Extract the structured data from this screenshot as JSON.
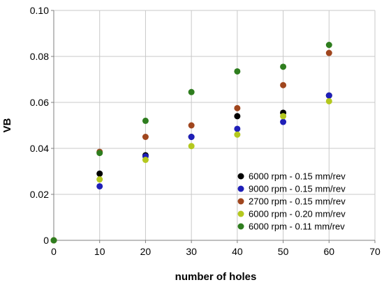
{
  "chart_data": {
    "type": "scatter",
    "xlabel": "number of holes",
    "ylabel": "VB",
    "xlim": [
      0,
      70
    ],
    "ylim": [
      0,
      0.1
    ],
    "x_ticks": [
      0,
      10,
      20,
      30,
      40,
      50,
      60,
      70
    ],
    "y_ticks": [
      0,
      0.02,
      0.04,
      0.06,
      0.08,
      0.1
    ],
    "x_tick_labels": [
      "0",
      "10",
      "20",
      "30",
      "40",
      "50",
      "60",
      "70"
    ],
    "y_tick_labels": [
      "0",
      "0.02",
      "0.04",
      "0.06",
      "0.08",
      "0.10"
    ],
    "grid": true,
    "legend_position": "bottom-right",
    "series": [
      {
        "name": "6000 rpm - 0.15 mm/rev",
        "color": "#000000",
        "x": [
          0,
          10,
          20,
          30,
          40,
          50,
          60
        ],
        "y": [
          0,
          0.029,
          0.037,
          0.045,
          0.054,
          0.0555,
          0.063
        ]
      },
      {
        "name": "9000 rpm - 0.15 mm/rev",
        "color": "#1f1fb8",
        "x": [
          0,
          10,
          20,
          30,
          40,
          50,
          60
        ],
        "y": [
          0,
          0.0235,
          0.0365,
          0.045,
          0.0485,
          0.0515,
          0.063
        ]
      },
      {
        "name": "2700 rpm - 0.15 mm/rev",
        "color": "#a0461e",
        "x": [
          0,
          10,
          20,
          30,
          40,
          50,
          60
        ],
        "y": [
          0,
          0.0385,
          0.045,
          0.05,
          0.0575,
          0.0675,
          0.0815
        ]
      },
      {
        "name": "6000 rpm - 0.20 mm/rev",
        "color": "#b4c81e",
        "x": [
          0,
          10,
          20,
          30,
          40,
          50,
          60
        ],
        "y": [
          0,
          0.0265,
          0.035,
          0.041,
          0.046,
          0.054,
          0.0605
        ]
      },
      {
        "name": "6000 rpm - 0.11 mm/rev",
        "color": "#2e7d1e",
        "x": [
          0,
          10,
          20,
          30,
          40,
          50,
          60
        ],
        "y": [
          0,
          0.038,
          0.052,
          0.0645,
          0.0735,
          0.0755,
          0.085
        ]
      }
    ]
  }
}
